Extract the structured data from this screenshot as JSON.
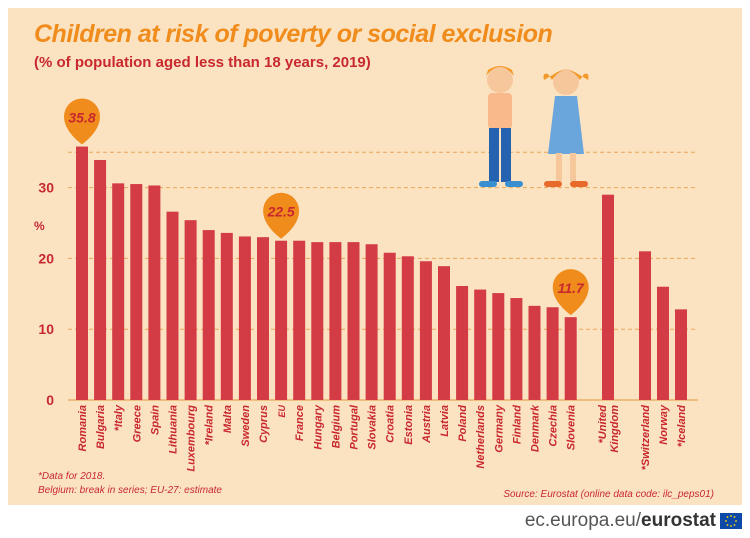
{
  "title": "Children at risk of poverty or social exclusion",
  "subtitle": "(% of population aged less than 18 years, 2019)",
  "notes": [
    "*Data for 2018.",
    "Belgium: break in series; EU-27: estimate"
  ],
  "source": "Source: Eurostat (online data code: ilc_peps01)",
  "brand": {
    "domain": "ec.europa.eu/",
    "name": "eurostat"
  },
  "colors": {
    "background": "#fbe3c2",
    "bar": "#d33b45",
    "accent": "#f08c1c",
    "text": "#c8282e"
  },
  "chart_data": {
    "type": "bar",
    "ylabel": "%",
    "ylim": [
      0,
      38
    ],
    "yticks": [
      0,
      10,
      20,
      30
    ],
    "grid": "dashed horizontal",
    "categories": [
      "Romania",
      "Bulgaria",
      "*Italy",
      "Greece",
      "Spain",
      "Lithuania",
      "Luxembourg",
      "*Ireland",
      "Malta",
      "Sweden",
      "Cyprus",
      "EU",
      "France",
      "Hungary",
      "Belgium",
      "Portugal",
      "Slovakia",
      "Croatia",
      "Estonia",
      "Austria",
      "Latvia",
      "Poland",
      "Netherlands",
      "Germany",
      "Finland",
      "Denmark",
      "Czechia",
      "Slovenia",
      "*United Kingdom",
      "*Switzerland",
      "Norway",
      "*Iceland"
    ],
    "values": [
      35.8,
      33.9,
      30.6,
      30.5,
      30.3,
      26.6,
      25.4,
      24.0,
      23.6,
      23.1,
      23.0,
      22.5,
      22.5,
      22.3,
      22.3,
      22.3,
      22.0,
      20.8,
      20.3,
      19.6,
      18.9,
      16.1,
      15.6,
      15.1,
      14.4,
      13.3,
      13.1,
      11.7,
      29.0,
      21.0,
      16.0,
      12.8
    ],
    "callouts": [
      {
        "category": "Romania",
        "label": "35.8"
      },
      {
        "category": "EU",
        "label": "22.5"
      },
      {
        "category": "Slovenia",
        "label": "11.7"
      }
    ]
  }
}
